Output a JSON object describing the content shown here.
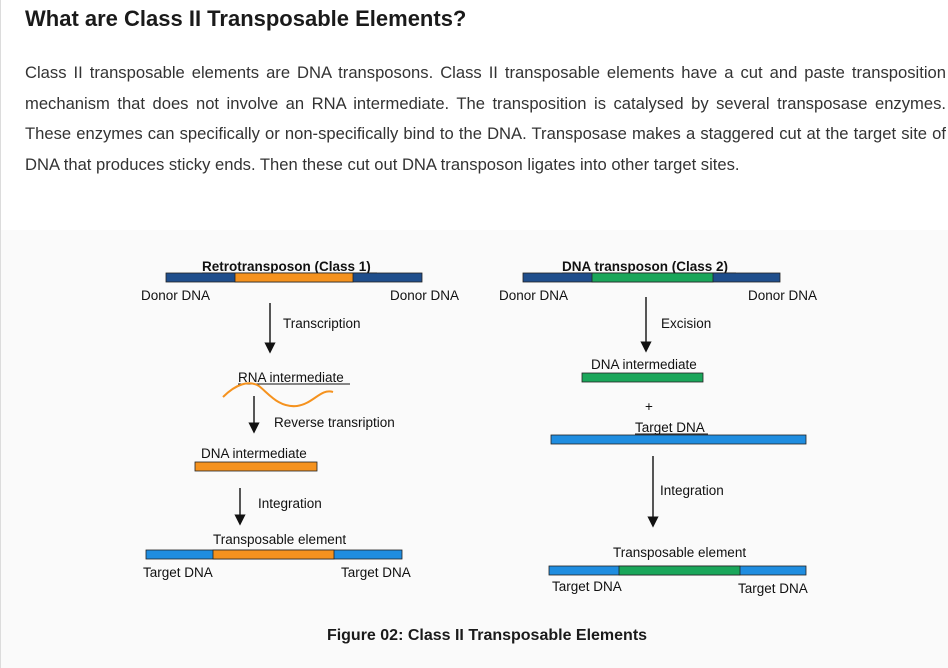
{
  "heading": "What are Class II Transposable Elements?",
  "paragraph": "Class II transposable elements are DNA transposons. Class II transposable elements have a cut and paste transposition mechanism that does not involve an RNA intermediate. The transposition is catalysed by several transposase enzymes. These enzymes can specifically or non-specifically bind to the DNA. Transposase makes a staggered cut at the target site of DNA that produces sticky ends. Then these cut out DNA transposon ligates into other target sites.",
  "figure": {
    "colors": {
      "dark_blue": "#1f4e8c",
      "orange": "#f5921e",
      "green": "#1aa65a",
      "light_blue": "#1f8de0"
    },
    "retro": {
      "title": "Retrotransposon (Class 1)",
      "donor_left": "Donor DNA",
      "donor_right": "Donor DNA",
      "step1": "Transcription",
      "rna": "RNA intermediate",
      "step2": "Reverse transription",
      "dna_intermediate": "DNA intermediate",
      "step3": "Integration",
      "element": "Transposable element",
      "target_left": "Target DNA",
      "target_right": "Target DNA"
    },
    "dna": {
      "title": "DNA transposon (Class 2)",
      "donor_left": "Donor DNA",
      "donor_right": "Donor DNA",
      "step1": "Excision",
      "dna_intermediate": "DNA intermediate",
      "plus": "+",
      "target": "Target DNA",
      "step2": "Integration",
      "element": "Transposable element",
      "target_left": "Target DNA",
      "target_right": "Target DNA"
    }
  },
  "caption": "Figure 02: Class II Transposable Elements"
}
